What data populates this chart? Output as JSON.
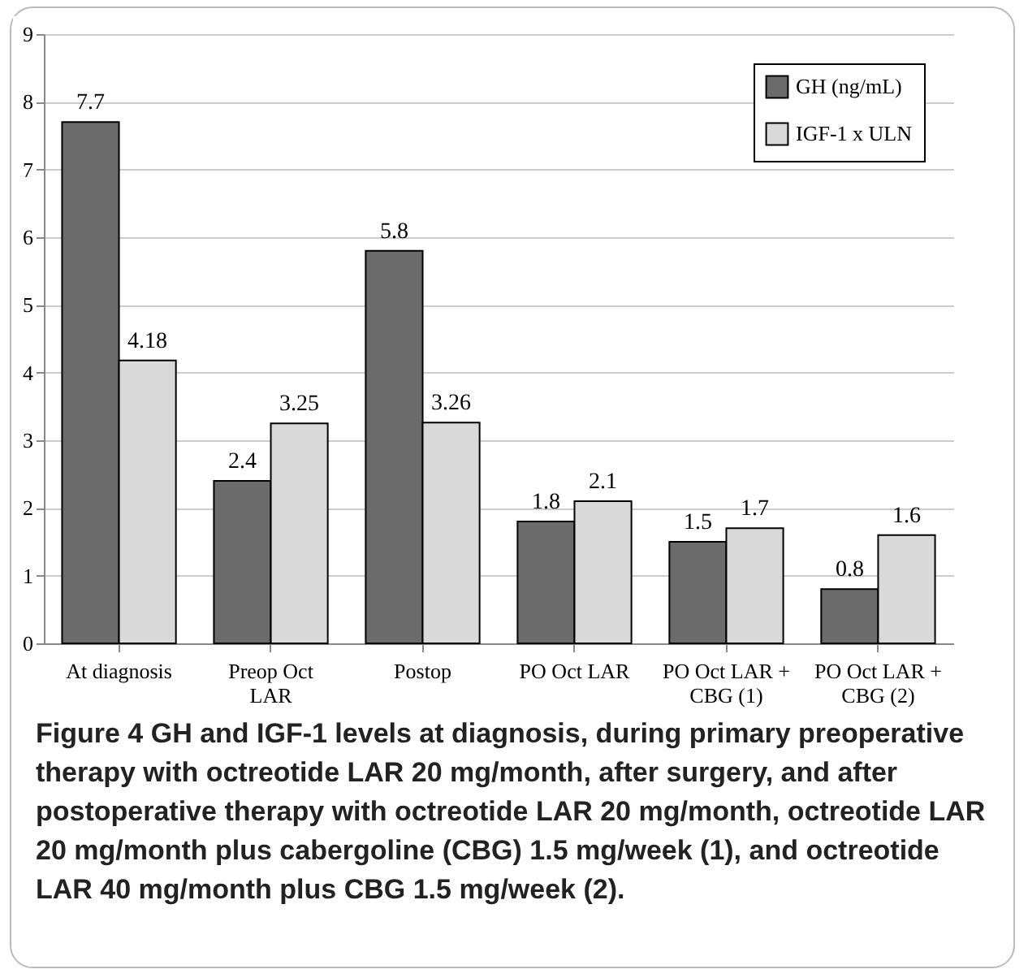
{
  "chart_data": {
    "type": "bar",
    "categories": [
      "At diagnosis",
      "Preop Oct LAR",
      "Postop",
      "PO Oct LAR",
      "PO Oct LAR + CBG (1)",
      "PO Oct LAR + CBG (2)"
    ],
    "series": [
      {
        "name": "GH (ng/mL)",
        "color": "#6b6b6b",
        "values": [
          7.7,
          2.4,
          5.8,
          1.8,
          1.5,
          0.8
        ]
      },
      {
        "name": "IGF-1 x ULN",
        "color": "#d9d9d9",
        "values": [
          4.18,
          3.25,
          3.26,
          2.1,
          1.7,
          1.6
        ]
      }
    ],
    "ylim": [
      0,
      9
    ],
    "yticks": [
      0,
      1,
      2,
      3,
      4,
      5,
      6,
      7,
      8,
      9
    ],
    "grid": "y",
    "legend": "top right",
    "data_labels": true,
    "annotations": [
      "Figure 4 GH and IGF-1 levels at diagnosis, during primary preoperative therapy with octreotide LAR 20 mg/month, after surgery, and after postoperative therapy with octreotide LAR 20 mg/month, octreotide LAR 20 mg/month plus cabergoline (CBG) 1.5 mg/week (1), and octreotide LAR 40 mg/month plus CBG 1.5 mg/week (2)."
    ]
  }
}
